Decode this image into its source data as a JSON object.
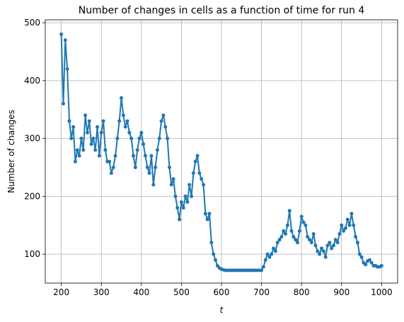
{
  "chart_data": {
    "type": "line",
    "title": "Number of changes in cells as a function of time for run 4",
    "x_label": "t",
    "y_label": "Number of changes",
    "x": [
      200,
      205,
      210,
      215,
      220,
      225,
      230,
      235,
      240,
      245,
      250,
      255,
      260,
      265,
      270,
      275,
      280,
      285,
      290,
      295,
      300,
      305,
      310,
      315,
      320,
      325,
      330,
      335,
      340,
      345,
      350,
      355,
      360,
      365,
      370,
      375,
      380,
      385,
      390,
      395,
      400,
      405,
      410,
      415,
      420,
      425,
      430,
      435,
      440,
      445,
      450,
      455,
      460,
      465,
      470,
      475,
      480,
      485,
      490,
      495,
      500,
      505,
      510,
      515,
      520,
      525,
      530,
      535,
      540,
      545,
      550,
      555,
      560,
      565,
      570,
      575,
      580,
      585,
      590,
      595,
      600,
      605,
      610,
      615,
      620,
      625,
      630,
      635,
      640,
      645,
      650,
      655,
      660,
      665,
      670,
      675,
      680,
      685,
      690,
      695,
      700,
      705,
      710,
      715,
      720,
      725,
      730,
      735,
      740,
      745,
      750,
      755,
      760,
      765,
      770,
      775,
      780,
      785,
      790,
      795,
      800,
      805,
      810,
      815,
      820,
      825,
      830,
      835,
      840,
      845,
      850,
      855,
      860,
      865,
      870,
      875,
      880,
      885,
      890,
      895,
      900,
      905,
      910,
      915,
      920,
      925,
      930,
      935,
      940,
      945,
      950,
      955,
      960,
      965,
      970,
      975,
      980,
      985,
      990,
      995,
      1000
    ],
    "series": [
      {
        "name": "changes",
        "color": "#1f77b4",
        "values": [
          480,
          360,
          470,
          420,
          330,
          300,
          320,
          260,
          280,
          270,
          300,
          280,
          340,
          310,
          330,
          290,
          300,
          280,
          320,
          270,
          310,
          330,
          280,
          260,
          260,
          240,
          250,
          270,
          300,
          330,
          370,
          340,
          320,
          330,
          310,
          300,
          270,
          250,
          280,
          300,
          310,
          290,
          270,
          250,
          240,
          270,
          220,
          250,
          280,
          300,
          330,
          340,
          320,
          300,
          250,
          220,
          230,
          200,
          180,
          160,
          190,
          180,
          200,
          190,
          220,
          200,
          240,
          260,
          270,
          240,
          230,
          220,
          170,
          160,
          170,
          120,
          100,
          90,
          80,
          76,
          74,
          73,
          72,
          72,
          72,
          72,
          72,
          72,
          72,
          72,
          72,
          72,
          72,
          72,
          72,
          72,
          72,
          72,
          72,
          72,
          72,
          78,
          90,
          100,
          95,
          100,
          110,
          105,
          120,
          125,
          130,
          140,
          135,
          150,
          175,
          140,
          130,
          125,
          120,
          140,
          165,
          155,
          150,
          130,
          125,
          120,
          135,
          115,
          105,
          100,
          110,
          105,
          95,
          115,
          120,
          110,
          115,
          125,
          120,
          135,
          150,
          140,
          145,
          160,
          150,
          170,
          150,
          130,
          120,
          100,
          95,
          85,
          82,
          88,
          90,
          85,
          80,
          80,
          78,
          78,
          80
        ]
      }
    ],
    "xlim": [
      160,
      1040
    ],
    "xticks": [
      200,
      300,
      400,
      500,
      600,
      700,
      800,
      900,
      1000
    ],
    "ylim": [
      50,
      505
    ],
    "yticks": [
      100,
      200,
      300,
      400,
      500
    ],
    "grid": true
  }
}
